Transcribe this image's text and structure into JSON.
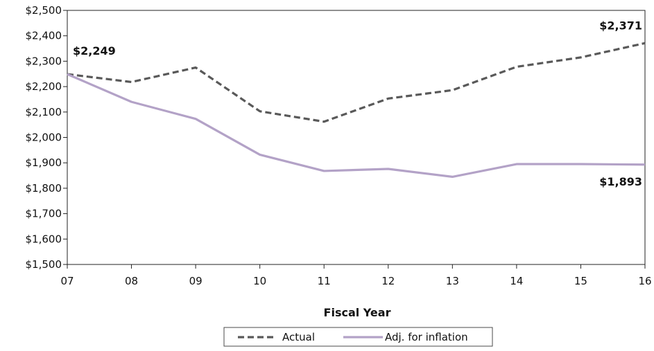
{
  "chart_data": {
    "type": "line",
    "xlabel": "Fiscal Year",
    "ylabel": "",
    "categories": [
      "07",
      "08",
      "09",
      "10",
      "11",
      "12",
      "13",
      "14",
      "15",
      "16"
    ],
    "ylim": [
      1500,
      2500
    ],
    "y_ticks": [
      "$1,500",
      "$1,600",
      "$1,700",
      "$1,800",
      "$1,900",
      "$2,000",
      "$2,100",
      "$2,200",
      "$2,300",
      "$2,400",
      "$2,500"
    ],
    "y_tick_values": [
      1500,
      1600,
      1700,
      1800,
      1900,
      2000,
      2100,
      2200,
      2300,
      2400,
      2500
    ],
    "grid": false,
    "legend_position": "bottom",
    "series": [
      {
        "name": "Actual",
        "values": [
          2249,
          2218,
          2275,
          2103,
          2062,
          2153,
          2186,
          2278,
          2315,
          2371
        ],
        "color": "#595959",
        "style": "dashed"
      },
      {
        "name": "Adj. for inflation",
        "values": [
          2249,
          2140,
          2073,
          1932,
          1868,
          1876,
          1845,
          1895,
          1895,
          1893
        ],
        "color": "#b3a2c7",
        "style": "solid"
      }
    ],
    "annotations": [
      "$2,249",
      "$2,371",
      "$1,893"
    ]
  }
}
